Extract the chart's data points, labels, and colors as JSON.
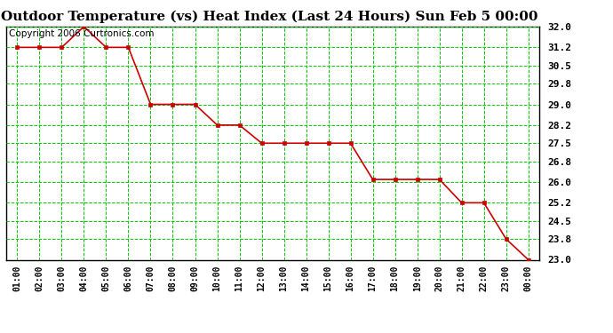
{
  "title": "Outdoor Temperature (vs) Heat Index (Last 24 Hours) Sun Feb 5 00:00",
  "copyright": "Copyright 2006 Curtronics.com",
  "x_labels": [
    "01:00",
    "02:00",
    "03:00",
    "04:00",
    "05:00",
    "06:00",
    "07:00",
    "08:00",
    "09:00",
    "10:00",
    "11:00",
    "12:00",
    "13:00",
    "14:00",
    "15:00",
    "16:00",
    "17:00",
    "18:00",
    "19:00",
    "20:00",
    "21:00",
    "22:00",
    "23:00",
    "00:00"
  ],
  "y_values": [
    31.2,
    31.2,
    31.2,
    32.0,
    31.2,
    31.2,
    29.0,
    29.0,
    29.0,
    28.2,
    28.2,
    27.5,
    27.5,
    27.5,
    27.5,
    27.5,
    26.1,
    26.1,
    26.1,
    26.1,
    25.2,
    25.2,
    23.8,
    23.0
  ],
  "y_min": 23.0,
  "y_max": 32.0,
  "y_ticks": [
    23.0,
    23.8,
    24.5,
    25.2,
    26.0,
    26.8,
    27.5,
    28.2,
    29.0,
    29.8,
    30.5,
    31.2,
    32.0
  ],
  "line_color": "#cc0000",
  "marker_color": "#cc0000",
  "bg_color": "#ffffff",
  "plot_bg_color": "#ffffff",
  "grid_color": "#00cc00",
  "title_fontsize": 11,
  "copyright_fontsize": 7.5
}
